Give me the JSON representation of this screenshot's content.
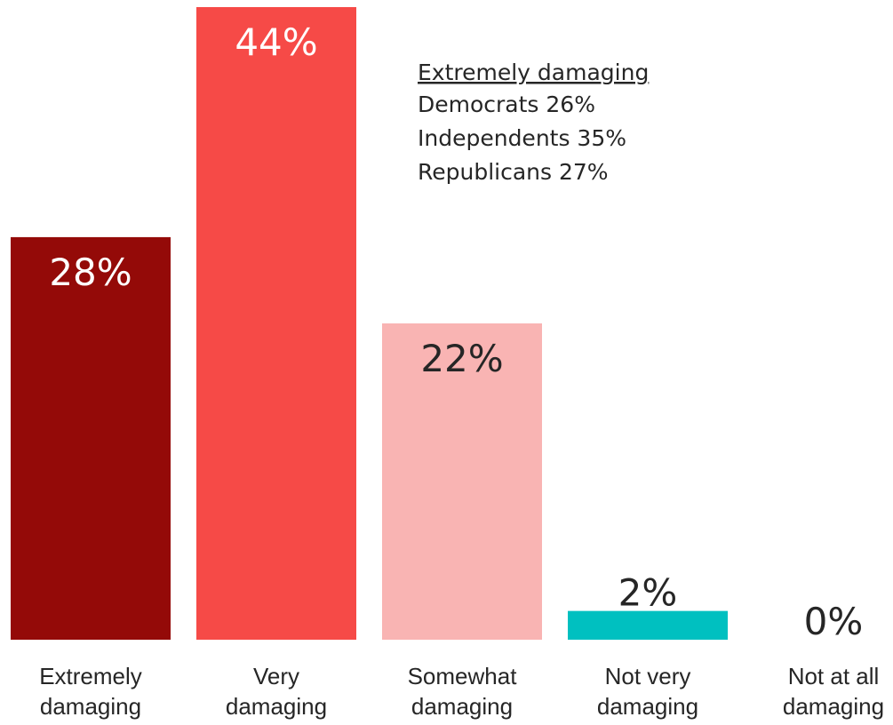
{
  "chart_data": {
    "type": "bar",
    "title": "",
    "xlabel": "",
    "ylabel": "",
    "ylim": [
      0,
      44
    ],
    "grid": false,
    "categories": [
      [
        "Extremely",
        "damaging"
      ],
      [
        "Very",
        "damaging"
      ],
      [
        "Somewhat",
        "damaging"
      ],
      [
        "Not very",
        "damaging"
      ],
      [
        "Not at all",
        "damaging"
      ]
    ],
    "values": [
      28,
      44,
      22,
      2,
      0
    ],
    "data_labels": [
      "28%",
      "44%",
      "22%",
      "2%",
      "0%"
    ],
    "colors": [
      "#940a08",
      "#f64a47",
      "#f9b4b3",
      "#00c0c0",
      "#ffffff"
    ],
    "label_colors": [
      "#ffffff",
      "#ffffff",
      "#262626",
      "#262626",
      "#262626"
    ],
    "annotation": {
      "heading": "Extremely damaging",
      "lines": [
        "Democrats 26%",
        "Independents 35%",
        "Republicans 27%"
      ]
    }
  }
}
